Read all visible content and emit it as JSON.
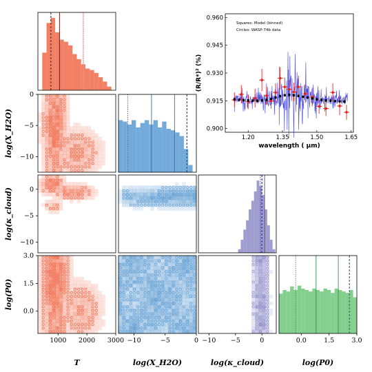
{
  "chart_data": [
    {
      "type": "corner",
      "parameters": [
        "T",
        "log(X_H2O)",
        "log(κ_cloud)",
        "log(P0)"
      ],
      "axis_labels": {
        "x": [
          "T",
          "log(X_H2O)",
          "log(κ_cloud)",
          "log(P0)"
        ],
        "y": [
          "log(X_H2O)",
          "log(κ_cloud)",
          "log(P0)"
        ]
      },
      "ranges": {
        "T": [
          300,
          3000
        ],
        "logX": [
          -12.5,
          0
        ],
        "logK": [
          -12,
          2.7
        ],
        "logP": [
          -1.2,
          3.0
        ]
      },
      "x_ticks": {
        "T": [
          "1000",
          "2000",
          "3000"
        ],
        "logX": [
          "−10",
          "−5",
          "0"
        ],
        "logK": [
          "−10",
          "−5",
          "0"
        ],
        "logP": [
          "0.0",
          "1.5",
          "3.0"
        ]
      },
      "y_ticks": {
        "logX": [
          "0",
          "−5",
          "−10"
        ],
        "logK": [
          "0",
          "−5",
          "−10"
        ],
        "logP": [
          "3.0",
          "1.5",
          "0.0"
        ]
      },
      "colors": {
        "T": "#f06a4a",
        "logX": "#5b9bd2",
        "logK": "#8e8cc8",
        "logP": "#6fc77a"
      },
      "hist_T": {
        "bins": [
          300,
          450,
          600,
          750,
          900,
          1050,
          1200,
          1350,
          1500,
          1650,
          1800,
          1950,
          2100,
          2250,
          2400,
          2550,
          2700
        ],
        "counts": [
          0.0,
          0.52,
          0.93,
          1.0,
          0.8,
          0.7,
          0.67,
          0.62,
          0.5,
          0.43,
          0.36,
          0.3,
          0.28,
          0.24,
          0.18,
          0.12,
          0.05
        ],
        "lines": {
          "dashed_dark": 750,
          "solid_dark": 1050,
          "solid_light": 1000,
          "dotted_pink": 1870,
          "solid_pink": 1880
        }
      },
      "hist_logX": {
        "bins": [
          -12.5,
          -11.8,
          -11.1,
          -10.4,
          -9.7,
          -9.0,
          -8.3,
          -7.6,
          -6.9,
          -6.2,
          -5.5,
          -4.8,
          -4.1,
          -3.4,
          -2.7,
          -2.0,
          -1.3
        ],
        "counts": [
          0.72,
          0.7,
          0.66,
          0.72,
          0.62,
          0.68,
          0.72,
          0.66,
          0.72,
          0.62,
          0.7,
          0.6,
          0.58,
          0.55,
          0.5,
          0.32,
          0.1
        ],
        "lines": {
          "dotted": -11.0,
          "solid": -7.2,
          "solid2": -3.5,
          "dashed": -1.5
        }
      },
      "hist_logK": {
        "bins": [
          -4.5,
          -4.0,
          -3.5,
          -3.0,
          -2.5,
          -2.0,
          -1.5,
          -1.0,
          -0.5,
          0.0,
          0.5,
          1.0,
          1.5,
          2.0
        ],
        "counts": [
          0.05,
          0.18,
          0.32,
          0.45,
          0.6,
          0.72,
          0.85,
          1.0,
          0.92,
          0.8,
          0.6,
          0.38,
          0.18,
          0.05
        ],
        "lines": {
          "solid": 0.5,
          "dashed": 0.0,
          "dotted": -0.3
        }
      },
      "hist_logP": {
        "bins": [
          -1.2,
          -1.0,
          -0.8,
          -0.6,
          -0.4,
          -0.2,
          0.0,
          0.2,
          0.4,
          0.6,
          0.8,
          1.0,
          1.2,
          1.4,
          1.6,
          1.8,
          2.0,
          2.2,
          2.4,
          2.6,
          2.8
        ],
        "counts": [
          0.55,
          0.6,
          0.58,
          0.65,
          0.6,
          0.66,
          0.62,
          0.6,
          0.58,
          0.62,
          0.6,
          0.58,
          0.62,
          0.6,
          0.56,
          0.62,
          0.6,
          0.58,
          0.56,
          0.6,
          0.5
        ],
        "lines": {
          "dotted": -0.3,
          "solid": 0.8,
          "solid2": 2.0,
          "dashed": 2.6
        }
      }
    },
    {
      "type": "scatter",
      "title": "",
      "xlabel": "wavelength ( μm)",
      "ylabel": "(R/R*)² (%)",
      "xlim": [
        1.1,
        1.66
      ],
      "ylim": [
        0.898,
        0.962
      ],
      "x_ticks": [
        "1.20",
        "1.35",
        "1.50",
        "1.65"
      ],
      "y_ticks": [
        "0.900",
        "0.915",
        "0.930",
        "0.945",
        "0.960"
      ],
      "legend": [
        "Squares: Model (binned)",
        "Circles: WASP-74b data"
      ],
      "series": [
        {
          "name": "Model (binned)",
          "marker": "square",
          "color": "#000000",
          "x": [
            1.14,
            1.16,
            1.18,
            1.2,
            1.22,
            1.24,
            1.26,
            1.28,
            1.3,
            1.32,
            1.34,
            1.36,
            1.38,
            1.4,
            1.42,
            1.44,
            1.46,
            1.48,
            1.5,
            1.52,
            1.54,
            1.56,
            1.58,
            1.6,
            1.62
          ],
          "y": [
            0.9158,
            0.9155,
            0.9153,
            0.9152,
            0.915,
            0.915,
            0.9152,
            0.9155,
            0.916,
            0.9168,
            0.9175,
            0.918,
            0.9182,
            0.918,
            0.9176,
            0.9172,
            0.9168,
            0.9163,
            0.9158,
            0.9155,
            0.9152,
            0.915,
            0.9148,
            0.9147,
            0.9146
          ],
          "err": [
            0.0008,
            0.0008,
            0.0008,
            0.0008,
            0.0008,
            0.0008,
            0.0008,
            0.0008,
            0.0008,
            0.0008,
            0.0008,
            0.0008,
            0.0008,
            0.0008,
            0.0008,
            0.0008,
            0.0008,
            0.0008,
            0.0008,
            0.0008,
            0.0008,
            0.0008,
            0.0008,
            0.0008,
            0.0008
          ]
        },
        {
          "name": "WASP-74b data",
          "marker": "circle",
          "color": "#e8231e",
          "x": [
            1.14,
            1.17,
            1.2,
            1.23,
            1.26,
            1.28,
            1.3,
            1.32,
            1.34,
            1.36,
            1.38,
            1.4,
            1.42,
            1.45,
            1.48,
            1.51,
            1.54,
            1.57,
            1.6,
            1.63
          ],
          "y": [
            0.9155,
            0.9185,
            0.9145,
            0.9165,
            0.9262,
            0.9178,
            0.9148,
            0.9195,
            0.9272,
            0.9225,
            0.9212,
            0.9198,
            0.9225,
            0.9188,
            0.917,
            0.912,
            0.9108,
            0.9195,
            0.9122,
            0.9088
          ],
          "err": [
            0.004,
            0.005,
            0.004,
            0.005,
            0.006,
            0.005,
            0.004,
            0.005,
            0.006,
            0.005,
            0.005,
            0.005,
            0.006,
            0.005,
            0.005,
            0.004,
            0.004,
            0.005,
            0.005,
            0.004
          ]
        },
        {
          "name": "model spectrum",
          "type": "line",
          "color": "#2222dd"
        }
      ]
    }
  ]
}
